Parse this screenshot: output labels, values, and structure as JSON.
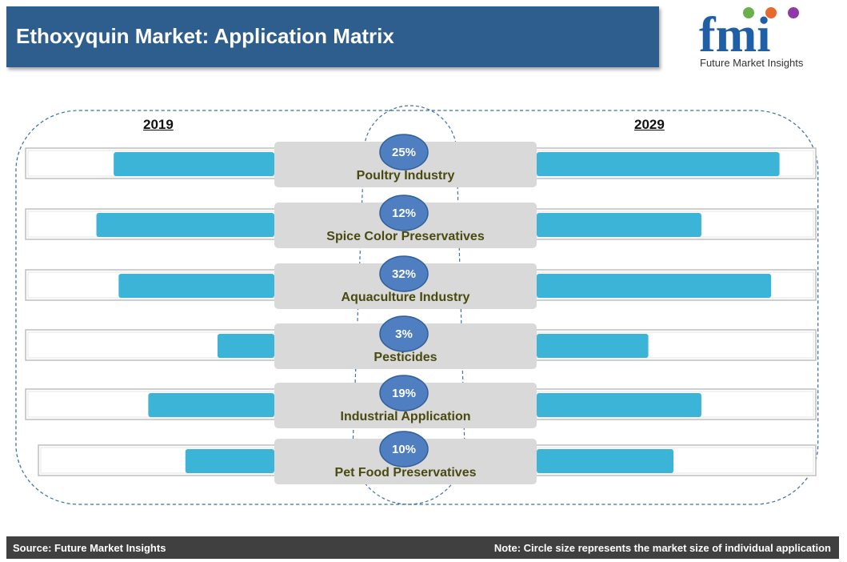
{
  "header": {
    "title": "Ethoxyquin Market: Application Matrix"
  },
  "logo": {
    "letters": "fmi",
    "tagline": "Future Market Insights"
  },
  "colors": {
    "bar": "#3bb4d8",
    "title_bg": "#2e5e8e",
    "circle": "#4f7fc0",
    "label": "#4a4a10",
    "footer_bg": "#404040"
  },
  "footer": {
    "source": "Source: Future Market Insights",
    "note": "Note: Circle size represents the market size of individual application"
  },
  "chart_data": {
    "type": "bar",
    "title": "Ethoxyquin Market: Application Matrix",
    "series_labels": [
      "2019",
      "2029"
    ],
    "scale_note": "relative bar lengths (0-1), no axis shown",
    "categories": [
      "Poultry Industry",
      "Spice Color Preservatives",
      "Aquaculture Industry",
      "Pesticides",
      "Industrial Application",
      "Pet Food Preservatives"
    ],
    "share_labels": [
      "25%",
      "12%",
      "32%",
      "3%",
      "19%",
      "10%"
    ],
    "series": [
      {
        "name": "2019",
        "values": [
          0.65,
          0.72,
          0.63,
          0.23,
          0.51,
          0.36
        ]
      },
      {
        "name": "2029",
        "values": [
          0.87,
          0.59,
          0.84,
          0.4,
          0.59,
          0.49
        ]
      }
    ]
  }
}
